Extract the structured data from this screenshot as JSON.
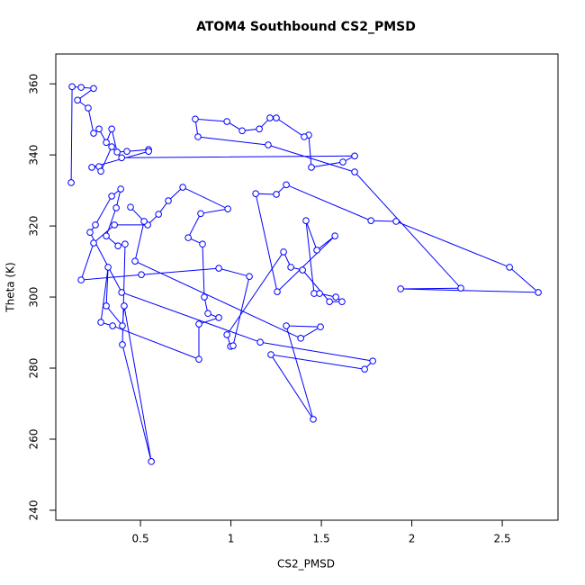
{
  "chart_data": {
    "type": "scatter-line",
    "title": "ATOM4 Southbound CS2_PMSD",
    "x_label": "CS2_PMSD",
    "y_label": "Theta (K)",
    "color": "#0000ff",
    "xlim": [
      0.032,
      2.808
    ],
    "ylim": [
      237.2,
      368.4
    ],
    "xticks": [
      0.5,
      1.0,
      1.5,
      2.0,
      2.5
    ],
    "yticks": [
      240,
      260,
      280,
      300,
      320,
      340,
      360
    ],
    "x": [
      0.117,
      0.122,
      0.172,
      0.241,
      0.152,
      0.211,
      0.241,
      0.271,
      0.311,
      0.341,
      0.371,
      0.425,
      0.545,
      0.545,
      0.231,
      0.271,
      0.281,
      0.341,
      0.396,
      1.684,
      1.619,
      1.445,
      1.43,
      1.405,
      1.251,
      1.216,
      1.157,
      1.062,
      0.978,
      0.803,
      0.818,
      1.206,
      1.684,
      2.271,
      1.938,
      2.699,
      2.54,
      1.913,
      1.774,
      1.306,
      1.251,
      1.137,
      1.256,
      1.575,
      1.475,
      1.415,
      1.46,
      1.49,
      1.58,
      1.614,
      1.545,
      1.396,
      1.331,
      1.291,
      0.978,
      0.998,
      1.012,
      1.102,
      0.933,
      0.505,
      0.172,
      0.241,
      0.356,
      0.54,
      0.6,
      0.654,
      0.734,
      0.983,
      0.833,
      0.764,
      0.843,
      0.853,
      0.873,
      0.933,
      0.823,
      0.823,
      0.346,
      0.281,
      0.321,
      0.311,
      0.4,
      0.41,
      0.56,
      0.4,
      0.415,
      0.376,
      0.311,
      0.366,
      0.391,
      0.341,
      0.251,
      0.221,
      0.396,
      1.162,
      1.784,
      1.739,
      1.221,
      1.455,
      1.306,
      1.495,
      1.386,
      0.47,
      0.52,
      0.445
    ],
    "y": [
      332.2,
      359.2,
      359.0,
      358.7,
      355.4,
      353.2,
      346.1,
      347.3,
      343.5,
      347.3,
      340.8,
      341.0,
      341.5,
      341.0,
      336.5,
      336.7,
      335.4,
      342.3,
      339.2,
      339.7,
      338.0,
      336.5,
      345.6,
      345.1,
      350.4,
      350.4,
      347.3,
      346.8,
      349.4,
      350.1,
      345.1,
      342.8,
      335.2,
      302.5,
      302.3,
      301.3,
      308.4,
      321.3,
      321.5,
      331.6,
      328.9,
      329.1,
      301.5,
      317.2,
      313.2,
      321.5,
      301.0,
      301.0,
      300.0,
      298.7,
      298.7,
      307.6,
      308.4,
      312.7,
      289.4,
      286.1,
      286.3,
      305.8,
      308.1,
      306.3,
      304.8,
      315.2,
      320.3,
      320.3,
      323.3,
      327.1,
      330.9,
      324.8,
      323.5,
      316.7,
      314.9,
      300.0,
      295.4,
      294.2,
      292.4,
      282.5,
      291.9,
      292.9,
      308.4,
      297.5,
      291.9,
      297.5,
      253.7,
      286.6,
      314.9,
      314.4,
      317.2,
      325.1,
      330.4,
      328.4,
      320.3,
      318.2,
      301.3,
      287.3,
      282.0,
      279.7,
      283.8,
      265.6,
      291.9,
      291.6,
      288.4,
      310.1,
      321.3,
      325.3
    ]
  }
}
